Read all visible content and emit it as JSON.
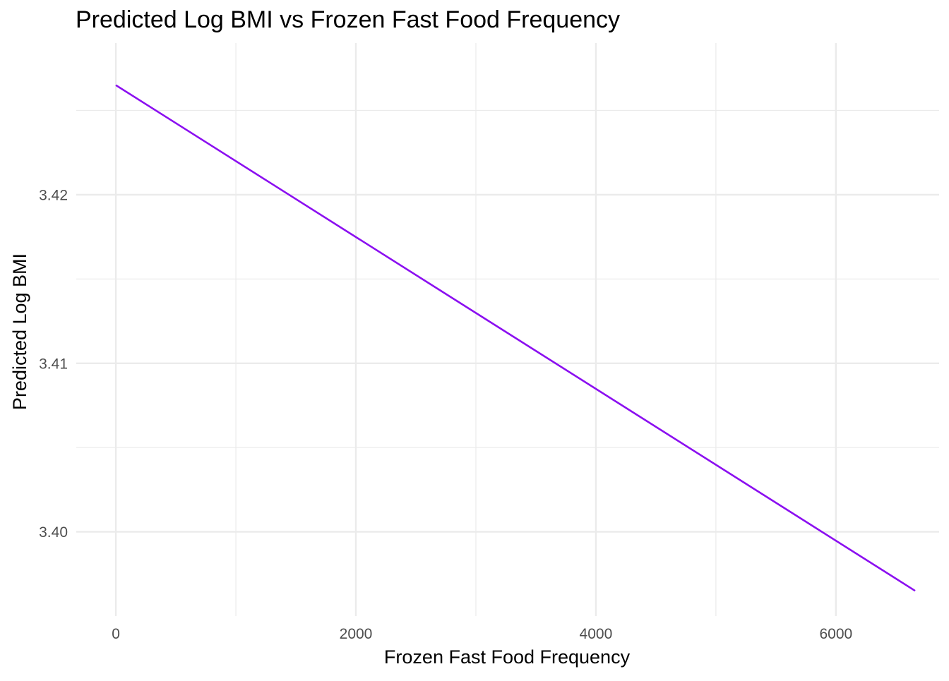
{
  "chart_data": {
    "type": "line",
    "title": "Predicted Log BMI vs Frozen Fast Food Frequency",
    "xlabel": "Frozen Fast Food Frequency",
    "ylabel": "Predicted Log BMI",
    "xlim": [
      -330,
      6860
    ],
    "ylim": [
      3.395,
      3.429
    ],
    "x_major_ticks": [
      0,
      2000,
      4000,
      6000
    ],
    "x_tick_labels": [
      "0",
      "2000",
      "4000",
      "6000"
    ],
    "x_minor_ticks": [
      1000,
      3000,
      5000
    ],
    "y_major_ticks": [
      3.4,
      3.41,
      3.42
    ],
    "y_tick_labels": [
      "3.40",
      "3.41",
      "3.42"
    ],
    "y_minor_ticks": [
      3.405,
      3.415,
      3.425
    ],
    "grid": true,
    "legend": "none",
    "series": [
      {
        "color": "#8b0ff0",
        "x": [
          0,
          6660
        ],
        "y": [
          3.4265,
          3.3965
        ]
      }
    ]
  }
}
